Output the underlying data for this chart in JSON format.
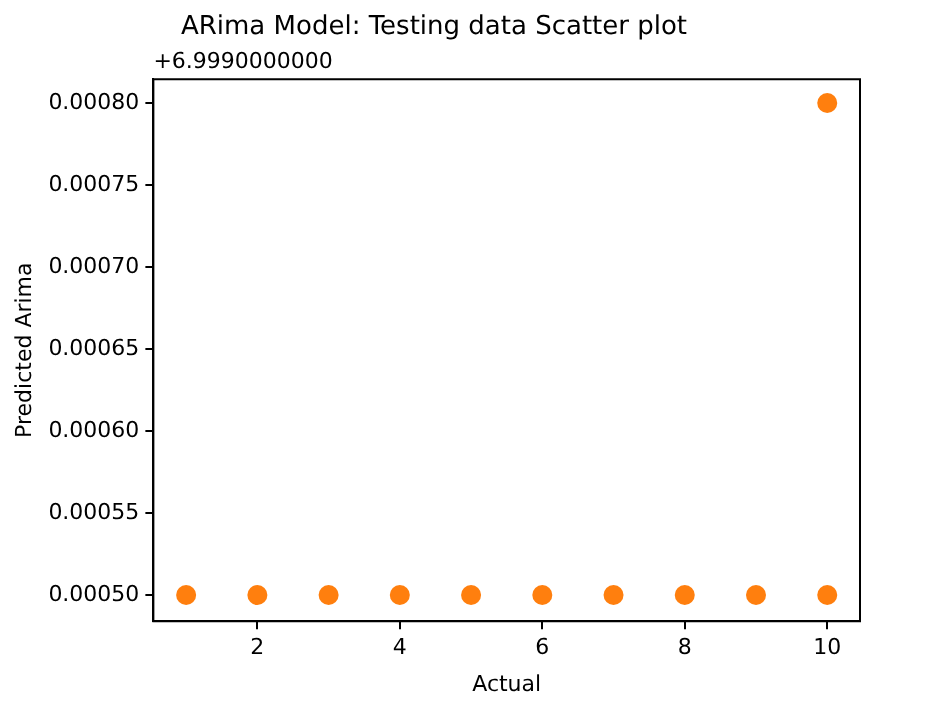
{
  "chart_data": {
    "type": "scatter",
    "title": "ARima Model: Testing data Scatter plot",
    "xlabel": "Actual",
    "ylabel": "Predicted Arima",
    "annotations": [
      "+6.9990000000"
    ],
    "x": [
      1,
      2,
      3,
      4,
      5,
      6,
      7,
      8,
      9,
      10,
      10
    ],
    "series": [
      {
        "color": "#ff7f0e",
        "values": [
          0.0005,
          0.0005,
          0.0005,
          0.0005,
          0.0005,
          0.0005,
          0.0005,
          0.0005,
          0.0005,
          0.0005,
          0.0008
        ]
      }
    ],
    "xlim": [
      0.54,
      10.46
    ],
    "xticks": [
      2,
      4,
      6,
      8,
      10
    ],
    "ylim": [
      0.000484,
      0.0008145
    ],
    "yticks": [
      {
        "value": 0.0005,
        "label": "0.00050"
      },
      {
        "value": 0.00055,
        "label": "0.00055"
      },
      {
        "value": 0.0006,
        "label": "0.00060"
      },
      {
        "value": 0.00065,
        "label": "0.00065"
      },
      {
        "value": 0.0007,
        "label": "0.00070"
      },
      {
        "value": 0.00075,
        "label": "0.00075"
      },
      {
        "value": 0.0008,
        "label": "0.00080"
      }
    ],
    "grid": false,
    "legend": false,
    "marker": "circle"
  }
}
